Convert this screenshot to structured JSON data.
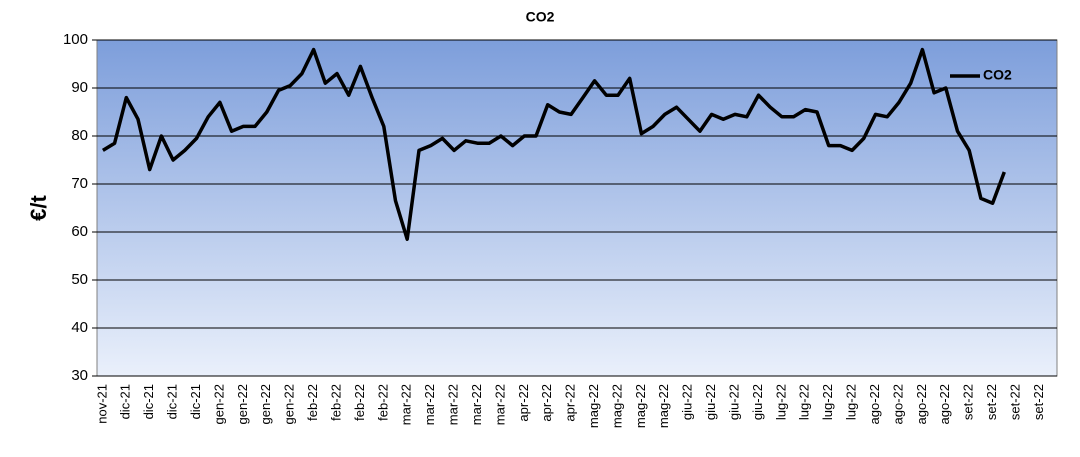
{
  "chart_data": {
    "type": "line",
    "title": "CO2",
    "y_label": "€/t",
    "categories": [
      "nov-21",
      null,
      "dic-21",
      null,
      "dic-21",
      null,
      "dic-21",
      null,
      "dic-21",
      null,
      "gen-22",
      null,
      "gen-22",
      null,
      "gen-22",
      null,
      "gen-22",
      null,
      "feb-22",
      null,
      "feb-22",
      null,
      "feb-22",
      null,
      "feb-22",
      null,
      "mar-22",
      null,
      "mar-22",
      null,
      "mar-22",
      null,
      "mar-22",
      null,
      "mar-22",
      null,
      "apr-22",
      null,
      "apr-22",
      null,
      "apr-22",
      null,
      "mag-22",
      null,
      "mag-22",
      null,
      "mag-22",
      null,
      "mag-22",
      null,
      "giu-22",
      null,
      "giu-22",
      null,
      "giu-22",
      null,
      "giu-22",
      null,
      "lug-22",
      null,
      "lug-22",
      null,
      "lug-22",
      null,
      "lug-22",
      null,
      "ago-22",
      null,
      "ago-22",
      null,
      "ago-22",
      null,
      "ago-22",
      null,
      "set-22",
      null,
      "set-22",
      null,
      "set-22",
      null,
      "set-22",
      null
    ],
    "series": [
      {
        "name": "CO2",
        "color": "#000000",
        "values": [
          77,
          78.5,
          88,
          83.5,
          73,
          80,
          75,
          77,
          79.5,
          84,
          87,
          81,
          82,
          82,
          85,
          89.5,
          90.5,
          93,
          98,
          91,
          93,
          88.5,
          94.5,
          88,
          82,
          66.5,
          58.5,
          77,
          78,
          79.5,
          77,
          79,
          78.5,
          78.5,
          80,
          78,
          80,
          80,
          86.5,
          85,
          84.5,
          88,
          91.5,
          88.5,
          88.5,
          92,
          80.5,
          82,
          84.5,
          86,
          83.5,
          81,
          84.5,
          83.5,
          84.5,
          84,
          88.5,
          86,
          84,
          84,
          85.5,
          85,
          78,
          78,
          77,
          79.5,
          84.5,
          84,
          87,
          91,
          98,
          89,
          90,
          81,
          77,
          67,
          66,
          72.5,
          null,
          null,
          null,
          null
        ]
      }
    ],
    "ylim": [
      30,
      100
    ],
    "yticks": [
      30,
      40,
      50,
      60,
      70,
      80,
      90,
      100
    ],
    "grid": true,
    "legend": "top-right"
  }
}
